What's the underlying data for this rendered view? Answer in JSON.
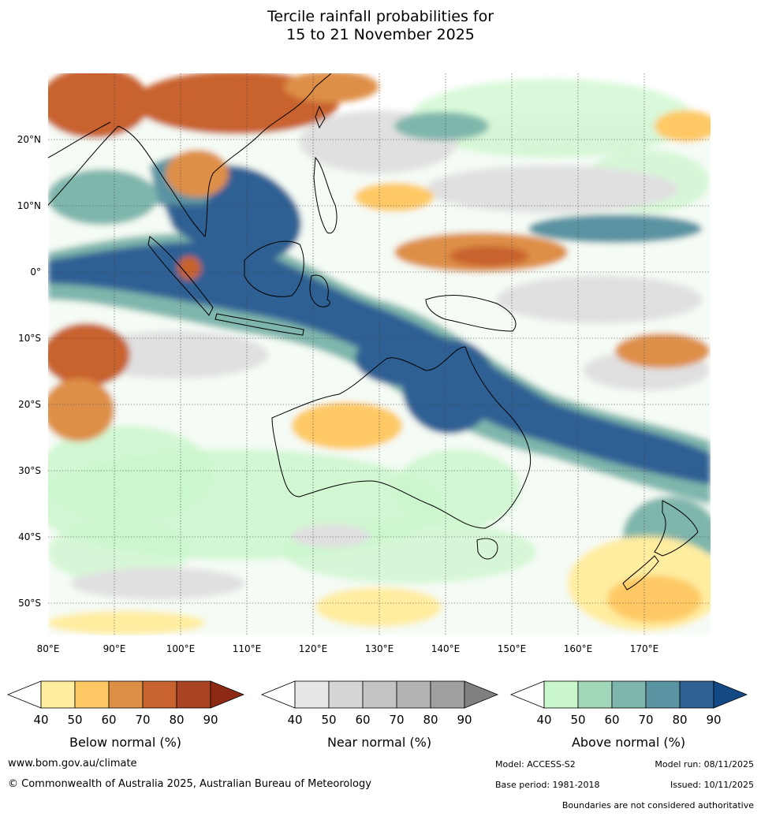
{
  "title_line1": "Tercile rainfall probabilities for",
  "title_line2": "15 to 21 November 2025",
  "map": {
    "lat_labels": [
      "20°N",
      "10°N",
      "0°",
      "10°S",
      "20°S",
      "30°S",
      "40°S",
      "50°S"
    ],
    "lon_labels": [
      "80°E",
      "90°E",
      "100°E",
      "110°E",
      "120°E",
      "130°E",
      "140°E",
      "150°E",
      "160°E",
      "170°E"
    ]
  },
  "legends": [
    {
      "title": "Below normal (%)",
      "ticks": [
        "40",
        "50",
        "60",
        "70",
        "80",
        "90"
      ],
      "colors": [
        "#ffeda0",
        "#fec965",
        "#de8f46",
        "#c8622f",
        "#a84323"
      ],
      "end_color": "#8c2a14"
    },
    {
      "title": "Near normal (%)",
      "ticks": [
        "40",
        "50",
        "60",
        "70",
        "80",
        "90"
      ],
      "colors": [
        "#e6e6e6",
        "#d6d6d6",
        "#c4c4c4",
        "#b3b3b3",
        "#a0a0a0"
      ],
      "end_color": "#808080"
    },
    {
      "title": "Above normal (%)",
      "ticks": [
        "40",
        "50",
        "60",
        "70",
        "80",
        "90"
      ],
      "colors": [
        "#c9f6cb",
        "#a2d6b8",
        "#7fb6ac",
        "#5a93a2",
        "#2e6094"
      ],
      "end_color": "#134a86"
    }
  ],
  "footer": {
    "website": "www.bom.gov.au/climate",
    "copyright": "© Commonwealth of Australia 2025, Australian Bureau of Meteorology",
    "model": "Model: ACCESS-S2",
    "model_run": "Model run: 08/11/2025",
    "base_period": "Base period: 1981-2018",
    "issued": "Issued: 10/11/2025",
    "disclaimer": "Boundaries are not considered authoritative"
  },
  "palette": {
    "ocean_neutral": "#ffffff",
    "above_light": "#c9f6cb",
    "above_mid": "#7fb6ac",
    "above_dark": "#2e6094",
    "near_light": "#e3e3e3",
    "below_light": "#ffeda0",
    "below_mid": "#de8f46",
    "below_dark": "#a84323"
  }
}
